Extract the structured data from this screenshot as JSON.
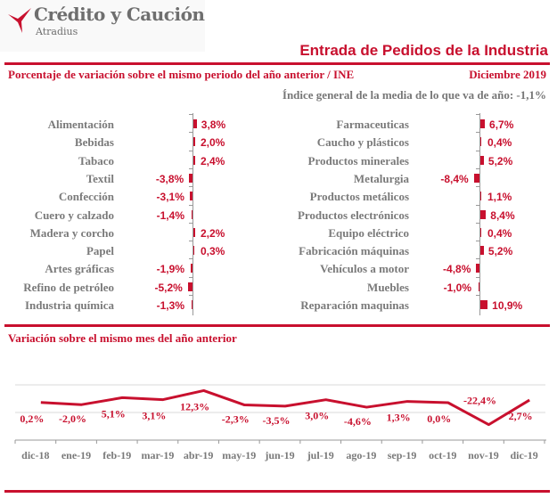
{
  "header": {
    "brand_name": "Crédito y Caución",
    "brand_sub": "Atradius",
    "brand_color": "#c8102e",
    "title": "Entrada de Pedidos de la Industria",
    "subtitle": "Porcentaje de variación sobre el mismo periodo del año anterior / INE",
    "date": "Diciembre 2019",
    "index_line": "Índice general de la media de lo que va de año:  -1,1%"
  },
  "section2_title": "Variación sobre el mismo mes del año anterior",
  "chart_data": [
    {
      "type": "bar",
      "orientation": "horizontal",
      "title": "Porcentaje de variación sobre el mismo periodo del año anterior / INE (izquierda)",
      "categories": [
        "Alimentación",
        "Bebidas",
        "Tabaco",
        "Textil",
        "Confección",
        "Cuero y calzado",
        "Madera y corcho",
        "Papel",
        "Artes gráficas",
        "Refino de petróleo",
        "Industria química"
      ],
      "values": [
        3.8,
        2.0,
        2.4,
        -3.8,
        -3.1,
        -1.4,
        2.2,
        0.3,
        -1.9,
        -5.2,
        -1.3
      ],
      "labels": [
        "3,8%",
        "2,0%",
        "2,4%",
        "-3,8%",
        "-3,1%",
        "-1,4%",
        "2,2%",
        "0,3%",
        "-1,9%",
        "-5,2%",
        "-1,3%"
      ],
      "color": "#c8102e"
    },
    {
      "type": "bar",
      "orientation": "horizontal",
      "title": "Porcentaje de variación sobre el mismo periodo del año anterior / INE (derecha)",
      "categories": [
        "Farmaceuticas",
        "Caucho y plásticos",
        "Productos minerales",
        "Metalurgia",
        "Productos metálicos",
        "Productos electrónicos",
        "Equipo eléctrico",
        "Fabricación máquinas",
        "Vehículos a motor",
        "Muebles",
        "Reparación maquinas"
      ],
      "values": [
        6.7,
        0.4,
        5.2,
        -8.4,
        1.1,
        8.4,
        0.4,
        5.2,
        -4.8,
        -1.0,
        10.9
      ],
      "labels": [
        "6,7%",
        "0,4%",
        "5,2%",
        "-8,4%",
        "1,1%",
        "8,4%",
        "0,4%",
        "5,2%",
        "-4,8%",
        "-1,0%",
        "10,9%"
      ],
      "color": "#c8102e"
    },
    {
      "type": "line",
      "title": "Variación sobre el mismo mes del año anterior",
      "categories": [
        "dic-18",
        "ene-19",
        "feb-19",
        "mar-19",
        "abr-19",
        "may-19",
        "jun-19",
        "jul-19",
        "ago-19",
        "sep-19",
        "oct-19",
        "nov-19",
        "dic-19"
      ],
      "values": [
        0.2,
        -2.0,
        5.1,
        3.1,
        12.3,
        -2.3,
        -3.5,
        3.0,
        -4.6,
        1.3,
        0.0,
        -22.4,
        2.7
      ],
      "labels": [
        "0,2%",
        "-2,0%",
        "5,1%",
        "3,1%",
        "12,3%",
        "-2,3%",
        "-3,5%",
        "3,0%",
        "-4,6%",
        "1,3%",
        "0,0%",
        "-22,4%",
        "2,7%"
      ],
      "ylim": [
        -25,
        15
      ],
      "grid": true,
      "color": "#c8102e"
    }
  ]
}
